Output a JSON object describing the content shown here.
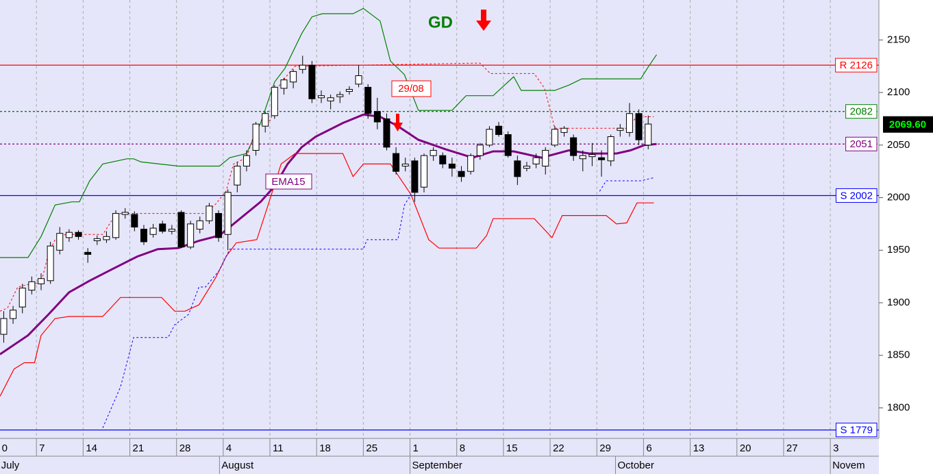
{
  "chart_data": {
    "type": "candlestick",
    "xlim": [
      -0.4,
      93.7
    ],
    "ylim": [
      1771,
      2188
    ],
    "yticks": [
      1800,
      1850,
      1900,
      1950,
      2000,
      2050,
      2100,
      2150
    ],
    "xticks": [
      {
        "value": -0.5,
        "label": "0"
      },
      {
        "value": 3.5,
        "label": "7"
      },
      {
        "value": 8.5,
        "label": "14"
      },
      {
        "value": 13.5,
        "label": "21"
      },
      {
        "value": 18.5,
        "label": "28"
      },
      {
        "value": 23.5,
        "label": "4"
      },
      {
        "value": 28.5,
        "label": "11"
      },
      {
        "value": 33.5,
        "label": "18"
      },
      {
        "value": 38.5,
        "label": "25"
      },
      {
        "value": 43.5,
        "label": "1"
      },
      {
        "value": 48.5,
        "label": "8"
      },
      {
        "value": 53.5,
        "label": "15"
      },
      {
        "value": 58.5,
        "label": "22"
      },
      {
        "value": 63.5,
        "label": "29"
      },
      {
        "value": 68.5,
        "label": "6"
      },
      {
        "value": 73.5,
        "label": "13"
      },
      {
        "value": 78.5,
        "label": "20"
      },
      {
        "value": 83.5,
        "label": "27"
      },
      {
        "value": 88.5,
        "label": "3"
      }
    ],
    "month_ticks": [
      {
        "value": -0.5,
        "label": "July"
      },
      {
        "value": 23.1,
        "label": "August"
      },
      {
        "value": 43.5,
        "label": "September"
      },
      {
        "value": 65.5,
        "label": "October"
      },
      {
        "value": 88.5,
        "label": "Novem"
      }
    ],
    "grid": true,
    "up_color": "#ffffff",
    "down_color": "#000000",
    "open": [
      1870,
      1885,
      1896,
      1912,
      1918,
      1921,
      1950,
      1962,
      1967,
      1948,
      1959,
      1960,
      1962,
      1984,
      1984,
      1970,
      1965,
      1975,
      1968,
      1986,
      1953,
      1970,
      1978,
      1985,
      1965,
      2012,
      2030,
      2045,
      2068,
      2078,
      2104,
      2110,
      2122,
      2126,
      2095,
      2092,
      2096,
      2101,
      2108,
      2105,
      2082,
      2075,
      2042,
      2030,
      2035,
      2010,
      2040,
      2040,
      2032,
      2025,
      2025,
      2040,
      2050,
      2068,
      2060,
      2035,
      2028,
      2032,
      2030,
      2050,
      2062,
      2057,
      2037,
      2039,
      2038,
      2035,
      2064,
      2062,
      2080,
      2050
    ],
    "high": [
      1892,
      1897,
      1918,
      1925,
      1928,
      1958,
      1972,
      1970,
      1969,
      1952,
      1964,
      1968,
      1988,
      1990,
      1987,
      1974,
      1975,
      1978,
      1974,
      1988,
      1978,
      1982,
      1995,
      1988,
      2008,
      2034,
      2045,
      2072,
      2082,
      2107,
      2114,
      2122,
      2135,
      2130,
      2102,
      2098,
      2101,
      2106,
      2126,
      2108,
      2095,
      2080,
      2048,
      2038,
      2038,
      2042,
      2048,
      2043,
      2038,
      2030,
      2042,
      2052,
      2068,
      2072,
      2063,
      2040,
      2034,
      2042,
      2048,
      2068,
      2068,
      2060,
      2045,
      2052,
      2045,
      2060,
      2070,
      2090,
      2084,
      2078
    ],
    "low": [
      1862,
      1880,
      1890,
      1908,
      1912,
      1918,
      1946,
      1958,
      1960,
      1938,
      1955,
      1957,
      1960,
      1980,
      1968,
      1955,
      1962,
      1966,
      1965,
      1952,
      1951,
      1966,
      1975,
      1958,
      1950,
      2005,
      2025,
      2040,
      2062,
      2075,
      2098,
      2104,
      2118,
      2090,
      2090,
      2084,
      2090,
      2098,
      2105,
      2075,
      2065,
      2045,
      2022,
      2025,
      1996,
      2005,
      2035,
      2028,
      2020,
      2015,
      2022,
      2036,
      2048,
      2058,
      2038,
      2012,
      2025,
      2028,
      2022,
      2048,
      2058,
      2035,
      2025,
      2030,
      2020,
      2030,
      2058,
      2058,
      2050,
      2046
    ],
    "close": [
      1885,
      1893,
      1914,
      1920,
      1923,
      1954,
      1966,
      1967,
      1963,
      1946,
      1961,
      1963,
      1985,
      1986,
      1972,
      1958,
      1971,
      1968,
      1970,
      1953,
      1975,
      1978,
      1992,
      1962,
      2005,
      2030,
      2040,
      2070,
      2080,
      2105,
      2112,
      2120,
      2126,
      2094,
      2097,
      2095,
      2098,
      2103,
      2116,
      2080,
      2072,
      2048,
      2025,
      2032,
      2005,
      2040,
      2045,
      2032,
      2028,
      2020,
      2040,
      2050,
      2065,
      2060,
      2040,
      2020,
      2030,
      2038,
      2045,
      2065,
      2066,
      2040,
      2040,
      2041,
      2036,
      2058,
      2066,
      2080,
      2055,
      2070
    ],
    "overlays": [
      {
        "name": "EMA15",
        "color": "#800080",
        "width": 3,
        "dash": false,
        "x": [
          -0.4,
          2.6,
          4.8,
          7,
          9.2,
          11.4,
          14.3,
          16.5,
          18.7,
          20.9,
          23.1,
          25.3,
          27.5,
          29,
          30.4,
          31.9,
          33.4,
          36.3,
          38.5,
          40.3,
          42.2,
          44.4,
          47.3,
          50.2,
          52.4,
          54.6,
          57.6,
          60.5,
          62.7,
          65.6,
          67.1,
          68.6,
          69.9
        ],
        "values": [
          1851,
          1869,
          1889,
          1910,
          1921,
          1931,
          1944,
          1951,
          1952,
          1959,
          1964,
          1980,
          1996,
          2011,
          2032,
          2048,
          2058,
          2071,
          2079,
          2077,
          2068,
          2055,
          2046,
          2038,
          2044,
          2044,
          2038,
          2045,
          2042,
          2042,
          2045,
          2050,
          2051
        ]
      },
      {
        "color": "#008000",
        "width": 1.2,
        "dash": false,
        "x": [
          -0.4,
          2.6,
          4,
          5.5,
          7.3,
          8.1,
          9.2,
          10.6,
          13.2,
          13.9,
          14.7,
          18.7,
          23.1,
          24.2,
          26,
          27.5,
          29,
          30.1,
          31.9,
          33,
          34.1,
          37.4,
          38.5,
          40.3,
          41.4,
          42.9,
          44.4,
          48,
          49.5,
          52.4,
          54.6,
          55.4,
          59,
          60.5,
          61.9,
          68.2,
          68.9,
          69.9
        ],
        "values": [
          1943,
          1943,
          1963,
          1993,
          1996,
          1996,
          2016,
          2032,
          2037,
          2037,
          2034,
          2030,
          2030,
          2038,
          2042,
          2071,
          2110,
          2123,
          2156,
          2172,
          2175,
          2175,
          2180,
          2168,
          2130,
          2117,
          2083,
          2083,
          2097,
          2097,
          2115,
          2102,
          2102,
          2107,
          2113,
          2113,
          2123,
          2136
        ]
      },
      {
        "color": "#ff0000",
        "width": 1.2,
        "dash": false,
        "x": [
          -0.4,
          1.1,
          2.2,
          3.3,
          4,
          5.5,
          7,
          10.6,
          12.5,
          16.9,
          18.3,
          19.4,
          20.9,
          22.7,
          23.8,
          24.9,
          27.1,
          28.2,
          29.7,
          31.2,
          36.3,
          37.4,
          38.5,
          41.4,
          43.6,
          45.5,
          46.6,
          50.6,
          51.7,
          52.4,
          56.8,
          58.7,
          59.8,
          64.5,
          65.6,
          66.7,
          67.8,
          69.6
        ],
        "values": [
          1811,
          1837,
          1843,
          1843,
          1869,
          1885,
          1887,
          1887,
          1905,
          1905,
          1892,
          1892,
          1898,
          1924,
          1944,
          1957,
          1960,
          1990,
          2032,
          2042,
          2042,
          2020,
          2032,
          2032,
          2003,
          1960,
          1952,
          1952,
          1964,
          1980,
          1980,
          1962,
          1983,
          1983,
          1975,
          1976,
          1995,
          1995
        ]
      },
      {
        "color": "#ff0000",
        "width": 1,
        "dash": true,
        "x": [
          -0.4,
          0.4,
          1.5,
          2.9,
          4,
          4.8,
          5.5,
          6.6,
          10.6,
          11.7,
          12.5,
          21.6,
          22.7,
          23.8,
          24.6,
          26,
          27.1,
          28.6,
          29.3,
          30.4,
          31.2,
          51,
          52.1,
          56.8,
          57.9,
          59,
          66.7,
          67.8,
          69.6
        ],
        "values": [
          1892,
          1895,
          1915,
          1918,
          1919,
          1947,
          1960,
          1965,
          1965,
          1980,
          1985,
          1985,
          1994,
          2006,
          2032,
          2038,
          2068,
          2074,
          2104,
          2117,
          2125,
          2128,
          2118,
          2118,
          2104,
          2066,
          2066,
          2077,
          2077
        ]
      },
      {
        "color": "#0000ff",
        "width": 1,
        "dash": true,
        "x": [
          10.6,
          12.5,
          13.9,
          17.6,
          18.3,
          19.8,
          20.9,
          21.6,
          23.1,
          24.2,
          38.5,
          38.9,
          42.2,
          42.9,
          43.6,
          53,
          63.8,
          64.5,
          68.2,
          69.6
        ],
        "values": [
          1781,
          1820,
          1867,
          1867,
          1879,
          1889,
          1915,
          1915,
          1931,
          1951,
          1951,
          1960,
          1960,
          1993,
          2003,
          null,
          2006,
          2016,
          2016,
          2019
        ]
      }
    ],
    "levels": [
      {
        "label": "R 2126",
        "value": 2126,
        "color": "#ff0000",
        "dash": false
      },
      {
        "label": "2082",
        "value": 2082,
        "color": "#008000",
        "dash": true
      },
      {
        "label": "2051",
        "value": 2051,
        "color": "#800080",
        "dash": true
      },
      {
        "label": "S 2002",
        "value": 2002,
        "color": "#0000ff",
        "dash": false
      },
      {
        "label": "S 1779",
        "value": 1779,
        "color": "#0000ff",
        "dash": false
      }
    ],
    "last_price": {
      "value": 2069.6,
      "label": "2069.60"
    },
    "annotations": {
      "signal": "GD",
      "date": "29/08"
    }
  }
}
